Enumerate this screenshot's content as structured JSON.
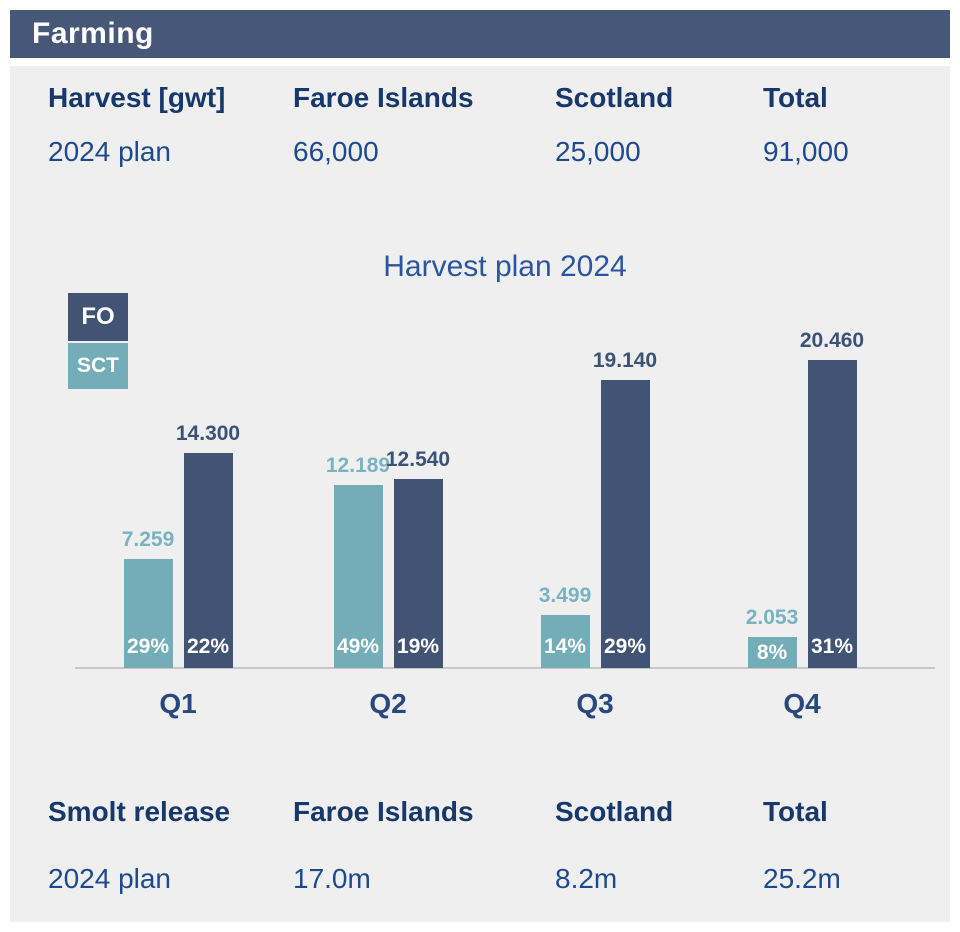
{
  "slide": {
    "header": {
      "label": "Farming"
    }
  },
  "harvest_table": {
    "headers": [
      "Harvest [gwt]",
      "Faroe Islands",
      "Scotland",
      "Total"
    ],
    "row": {
      "label": "2024 plan",
      "faroe": "66,000",
      "scotland": "25,000",
      "total": "91,000"
    }
  },
  "smolt_table": {
    "headers": [
      "Smolt release",
      "Faroe Islands",
      "Scotland",
      "Total"
    ],
    "row": {
      "label": "2024 plan",
      "faroe": "17.0m",
      "scotland": "8.2m",
      "total": "25.2m"
    }
  },
  "chart_data": {
    "type": "bar",
    "title": "Harvest plan 2024",
    "categories": [
      "Q1",
      "Q2",
      "Q3",
      "Q4"
    ],
    "series": [
      {
        "name": "FO",
        "color": "#425473",
        "label_color": "#3b5377",
        "values": [
          14300,
          12540,
          19140,
          20460
        ],
        "value_labels": [
          "14.300",
          "12.540",
          "19.140",
          "20.460"
        ],
        "share_labels": [
          "22%",
          "19%",
          "29%",
          "31%"
        ]
      },
      {
        "name": "SCT",
        "color": "#72adb8",
        "label_color": "#79b2c1",
        "values": [
          7259,
          12189,
          3499,
          2053
        ],
        "value_labels": [
          "7.259",
          "12.189",
          "3.499",
          "2.053"
        ],
        "share_labels": [
          "29%",
          "49%",
          "14%",
          "8%"
        ]
      }
    ],
    "xlabel": "",
    "ylabel": "",
    "ylim": [
      0,
      22000
    ],
    "grid": false,
    "legend_position": "top-left",
    "units": "gwt"
  },
  "colors": {
    "header_band": "#475778",
    "panel_bg": "#efeff0",
    "heading_navy": "#17386b",
    "value_navy": "#1d4a8d",
    "title_blue": "#2a55a0",
    "category_navy": "#28497f",
    "fo_bar": "#425473",
    "sct_bar": "#72adb8",
    "axis_line": "#c7c7c9",
    "bar_pct_text": "#ffffff"
  }
}
